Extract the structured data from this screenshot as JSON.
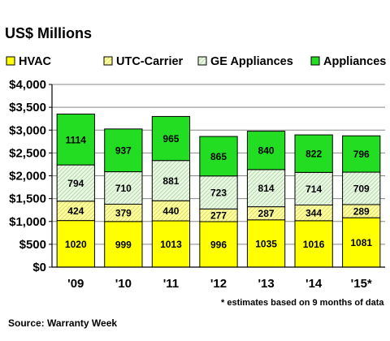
{
  "chart_data": {
    "type": "bar",
    "stacked": true,
    "title": "US$ Millions",
    "categories": [
      "'09",
      "'10",
      "'11",
      "'12",
      "'13",
      "'14",
      "'15*"
    ],
    "series": [
      {
        "name": "HVAC",
        "values": [
          1020,
          999,
          1013,
          996,
          1035,
          1016,
          1081
        ],
        "color": "#ffff00",
        "pattern": "solid"
      },
      {
        "name": "UTC-Carrier",
        "values": [
          424,
          379,
          440,
          277,
          287,
          344,
          289
        ],
        "color": "#ffffa0",
        "pattern": "diagonal"
      },
      {
        "name": "GE Appliances",
        "values": [
          794,
          710,
          881,
          723,
          814,
          714,
          709
        ],
        "color": "#ecf7e6",
        "pattern": "diagonal"
      },
      {
        "name": "Appliances",
        "values": [
          1114,
          937,
          965,
          865,
          840,
          822,
          796
        ],
        "color": "#22dd22",
        "pattern": "solid"
      }
    ],
    "ylim": [
      0,
      4000
    ],
    "yticks": [
      "$0",
      "$500",
      "$1,000",
      "$1,500",
      "$2,000",
      "$2,500",
      "$3,000",
      "$3,500",
      "$4,000"
    ],
    "grid": true,
    "legend_position": "top",
    "footnote": "* estimates based on 9 months of data",
    "source": "Source: Warranty Week"
  }
}
